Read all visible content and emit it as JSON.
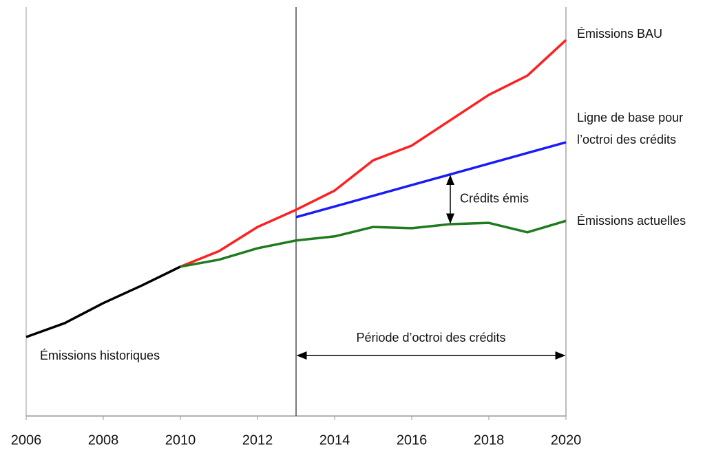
{
  "chart_data": {
    "type": "line",
    "xlim": [
      2006,
      2020
    ],
    "ylim": [
      0,
      100
    ],
    "xticks": [
      2006,
      2008,
      2010,
      2012,
      2014,
      2016,
      2018,
      2020
    ],
    "series": [
      {
        "name": [
          "Émissions historiques"
        ],
        "color": "#000000",
        "x": [
          2006,
          2007,
          2008,
          2009,
          2010
        ],
        "values": [
          19.3,
          22.7,
          27.6,
          31.9,
          36.5
        ]
      },
      {
        "name": [
          "Émissions BAU"
        ],
        "color": "#ff2020",
        "x": [
          2010,
          2011,
          2012,
          2013,
          2014,
          2015,
          2016,
          2017,
          2018,
          2019,
          2020
        ],
        "values": [
          36.5,
          40.3,
          46.2,
          50.4,
          55.1,
          62.5,
          66.1,
          72.3,
          78.5,
          83.2,
          91.9
        ]
      },
      {
        "name": [
          "Ligne de base pour",
          "l’octroi des crédits"
        ],
        "color": "#1a1aff",
        "x": [
          2013,
          2020
        ],
        "values": [
          48.6,
          66.9
        ]
      },
      {
        "name": [
          "Émissions  actuelles"
        ],
        "color": "#1e7b1e",
        "x": [
          2010,
          2011,
          2012,
          2013,
          2014,
          2015,
          2016,
          2017,
          2018,
          2019,
          2020
        ],
        "values": [
          36.5,
          38.2,
          41.0,
          42.9,
          43.9,
          46.2,
          45.9,
          46.9,
          47.2,
          44.9,
          47.7
        ]
      }
    ],
    "annotations": [
      {
        "text": "Crédits émis",
        "x": 2017
      },
      {
        "text": "Période d’octroi des crédits",
        "xrange": [
          2013,
          2020
        ]
      }
    ]
  }
}
